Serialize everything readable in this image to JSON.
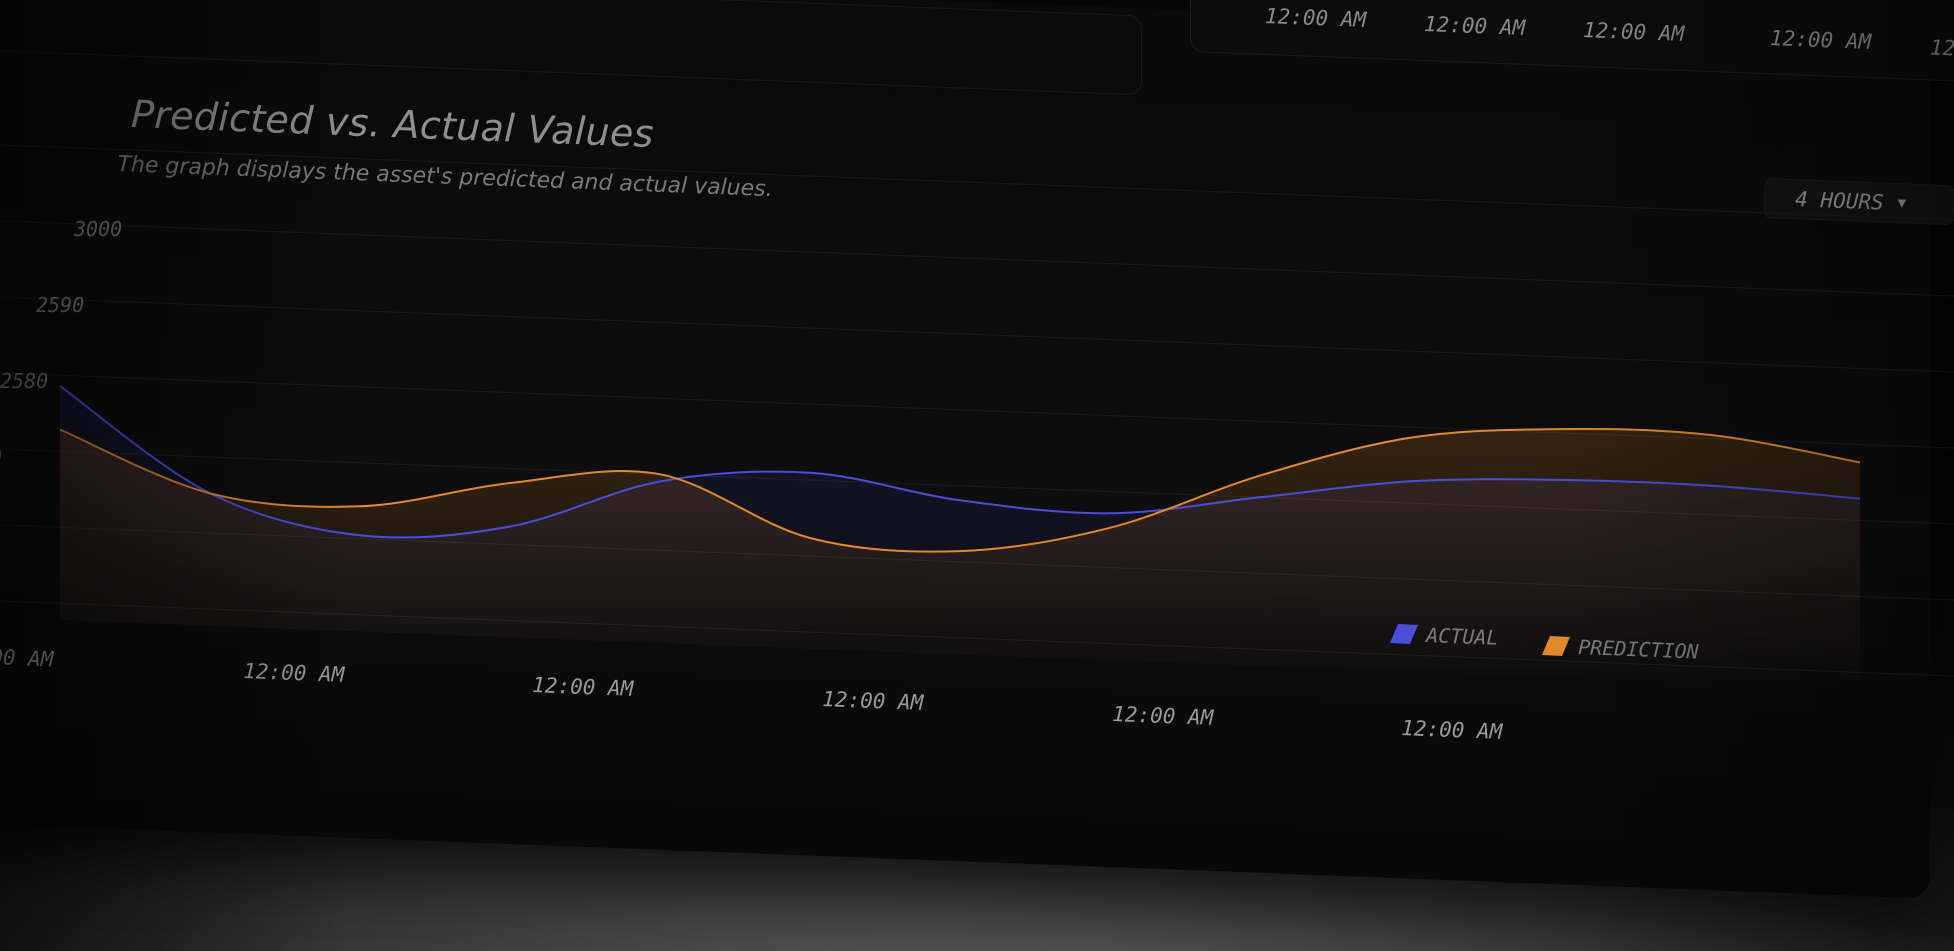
{
  "header": {
    "title": "Predicted vs. Actual Values",
    "subtitle": "The graph displays the asset's predicted and actual values.",
    "range_selector": "4 HOURS",
    "range_icon": "chevron-down-icon"
  },
  "top_strip": {
    "ticks": [
      "12:00 AM",
      "12:00 AM",
      "12:00 AM",
      "12:00 AM",
      "12:00 AM",
      "12"
    ]
  },
  "colors": {
    "actual": "#4a4ed8",
    "prediction": "#e0892e",
    "grid": "#1c1c1c",
    "text": "#8a8a8a"
  },
  "chart_data": {
    "type": "line",
    "title": "Predicted vs. Actual Values",
    "subtitle": "The graph displays the asset's predicted and actual values.",
    "xlabel": "",
    "ylabel": "",
    "y_tick_labels": [
      "3000",
      "2590",
      "2580",
      "0"
    ],
    "categories": [
      "00 AM",
      "12:00 AM",
      "12:00 AM",
      "12:00 AM",
      "12:00 AM",
      "12:00 AM"
    ],
    "x": [
      0,
      1,
      2,
      3,
      4,
      5,
      6,
      7,
      8,
      9,
      10,
      11,
      12
    ],
    "series": [
      {
        "name": "ACTUAL",
        "color": "#4a4ed8",
        "values": [
          2584,
          2570,
          2565,
          2567,
          2574,
          2576,
          2573,
          2572,
          2575,
          2578,
          2579,
          2579,
          2578
        ]
      },
      {
        "name": "PREDICTION",
        "color": "#e0892e",
        "values": [
          2578,
          2570,
          2569,
          2573,
          2575,
          2567,
          2566,
          2570,
          2578,
          2584,
          2586,
          2586,
          2583
        ]
      }
    ],
    "grid": true,
    "legend_placement": "bottom-right",
    "legend": [
      "ACTUAL",
      "PREDICTION"
    ]
  }
}
